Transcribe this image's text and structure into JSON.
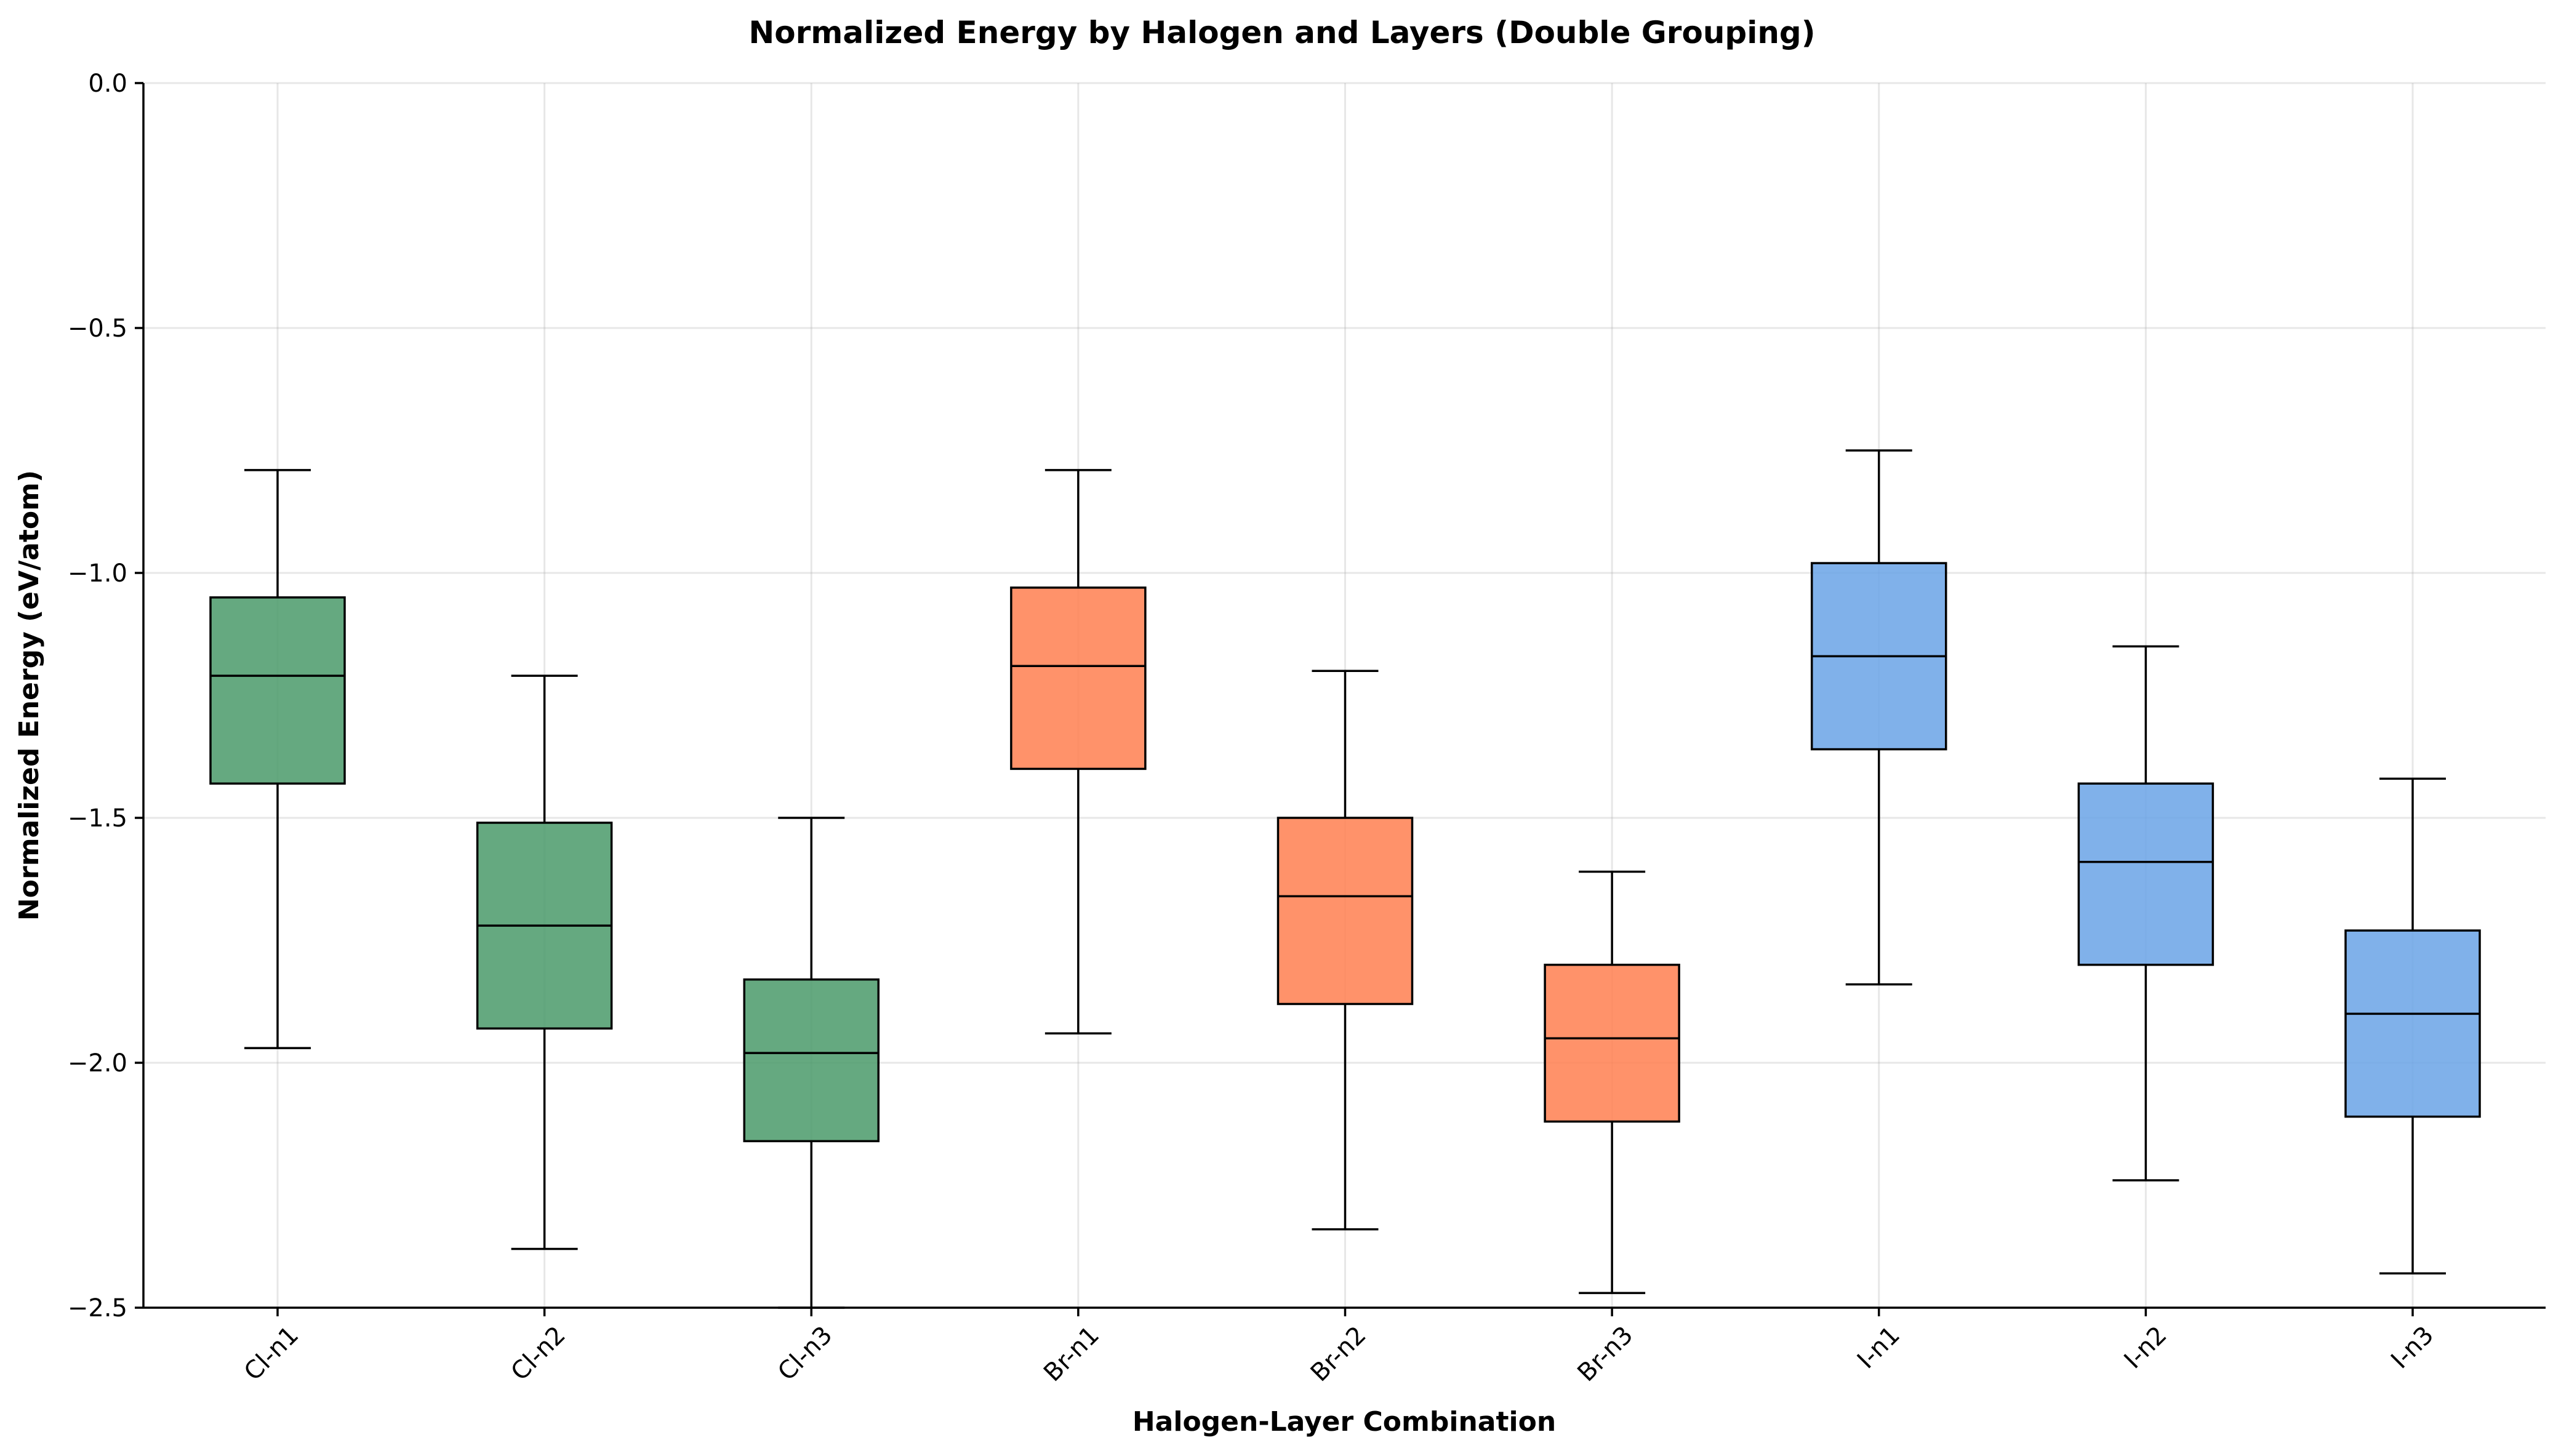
{
  "chart_data": {
    "type": "boxplot",
    "title": "Normalized Energy by Halogen and Layers (Double Grouping)",
    "xlabel": "Halogen-Layer Combination",
    "ylabel": "Normalized Energy (eV/atom)",
    "ylim": [
      -2.5,
      0.0
    ],
    "yticks": [
      0.0,
      -0.5,
      -1.0,
      -1.5,
      -2.0,
      -2.5
    ],
    "ytick_labels": [
      "0.0",
      "−0.5",
      "−1.0",
      "−1.5",
      "−2.0",
      "−2.5"
    ],
    "grid": true,
    "categories": [
      "Cl-n1",
      "Cl-n2",
      "Cl-n3",
      "Br-n1",
      "Br-n2",
      "Br-n3",
      "I-n1",
      "I-n2",
      "I-n3"
    ],
    "colors": {
      "Cl": "#4a9a6a",
      "Br": "#ff7f50",
      "I": "#6aa3e6"
    },
    "boxes": [
      {
        "label": "Cl-n1",
        "group": "Cl",
        "whislo": -1.97,
        "q1": -1.43,
        "median": -1.21,
        "q3": -1.05,
        "whishi": -0.79
      },
      {
        "label": "Cl-n2",
        "group": "Cl",
        "whislo": -2.38,
        "q1": -1.93,
        "median": -1.72,
        "q3": -1.51,
        "whishi": -1.21
      },
      {
        "label": "Cl-n3",
        "group": "Cl",
        "whislo": -2.5,
        "q1": -2.16,
        "median": -1.98,
        "q3": -1.83,
        "whishi": -1.5
      },
      {
        "label": "Br-n1",
        "group": "Br",
        "whislo": -1.94,
        "q1": -1.4,
        "median": -1.19,
        "q3": -1.03,
        "whishi": -0.79
      },
      {
        "label": "Br-n2",
        "group": "Br",
        "whislo": -2.34,
        "q1": -1.88,
        "median": -1.66,
        "q3": -1.5,
        "whishi": -1.2
      },
      {
        "label": "Br-n3",
        "group": "Br",
        "whislo": -2.47,
        "q1": -2.12,
        "median": -1.95,
        "q3": -1.8,
        "whishi": -1.61
      },
      {
        "label": "I-n1",
        "group": "I",
        "whislo": -1.84,
        "q1": -1.36,
        "median": -1.17,
        "q3": -0.98,
        "whishi": -0.75
      },
      {
        "label": "I-n2",
        "group": "I",
        "whislo": -2.24,
        "q1": -1.8,
        "median": -1.59,
        "q3": -1.43,
        "whishi": -1.15
      },
      {
        "label": "I-n3",
        "group": "I",
        "whislo": -2.43,
        "q1": -2.11,
        "median": -1.9,
        "q3": -1.73,
        "whishi": -1.42
      }
    ]
  }
}
